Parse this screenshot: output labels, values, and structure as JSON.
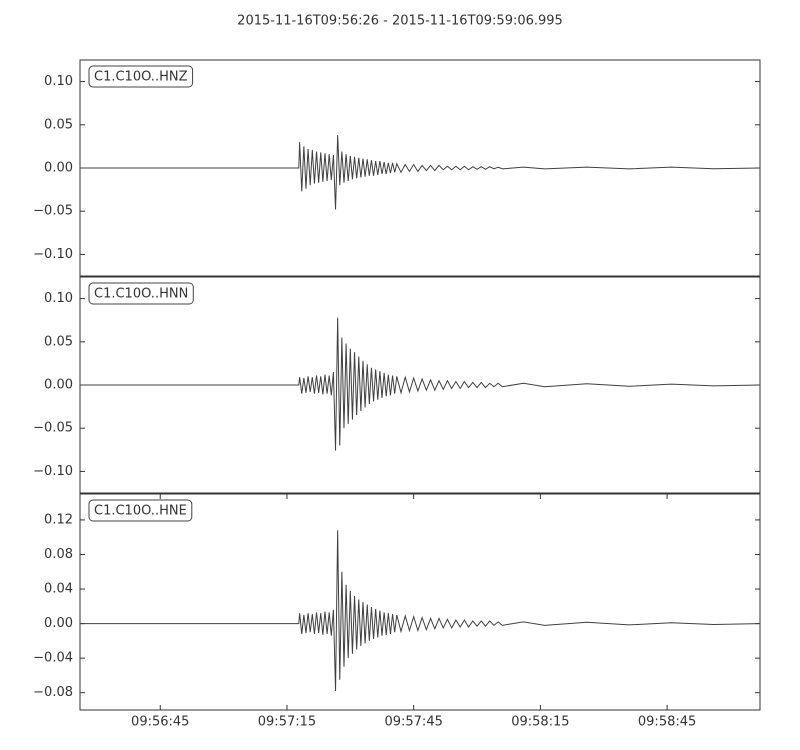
{
  "title": "2015-11-16T09:56:26  -  2015-11-16T09:59:06.995",
  "chart_data": [
    {
      "type": "line",
      "label": "C1.C10O..HNZ",
      "color": "#404040",
      "x": [
        0,
        20,
        40,
        51.8,
        52,
        52.5,
        53,
        53.5,
        54,
        54.5,
        55,
        55.5,
        56,
        56.5,
        57,
        57.5,
        58,
        58.5,
        59,
        59.5,
        60,
        60.5,
        61,
        61.5,
        62,
        62.5,
        63,
        63.5,
        64,
        64.5,
        65,
        65.5,
        66,
        66.5,
        67,
        67.5,
        68,
        68.5,
        69,
        69.5,
        70,
        70.5,
        71,
        71.5,
        72,
        72.5,
        73,
        73.5,
        74,
        74.5,
        75,
        76,
        77,
        78,
        79,
        80,
        81,
        82,
        83,
        84,
        85,
        86,
        87,
        88,
        89,
        90,
        91,
        92,
        93,
        94,
        95,
        96,
        97,
        98,
        99,
        100,
        105,
        110,
        120,
        130,
        140,
        150,
        160.995
      ],
      "values": [
        0,
        0,
        0,
        0,
        0.03,
        -0.027,
        0.025,
        -0.024,
        0.022,
        -0.02,
        0.021,
        -0.018,
        0.019,
        -0.017,
        0.018,
        -0.016,
        0.017,
        -0.015,
        0.016,
        -0.014,
        0.015,
        -0.048,
        0.038,
        -0.02,
        0.019,
        -0.017,
        0.016,
        -0.015,
        0.014,
        -0.013,
        0.013,
        -0.012,
        0.012,
        -0.011,
        0.011,
        -0.01,
        0.01,
        -0.009,
        0.009,
        -0.009,
        0.008,
        -0.008,
        0.008,
        -0.007,
        0.007,
        -0.007,
        0.006,
        -0.006,
        0.006,
        -0.005,
        0.005,
        -0.005,
        0.004,
        -0.004,
        0.004,
        -0.004,
        0.003,
        -0.003,
        0.003,
        -0.003,
        0.003,
        -0.002,
        0.002,
        -0.002,
        0.002,
        -0.002,
        0.002,
        -0.002,
        0.0015,
        -0.0015,
        0.0015,
        -0.0015,
        0.0015,
        -0.001,
        0.001,
        -0.001,
        0.001,
        -0.001,
        0.001,
        -0.001,
        0.001,
        -0.0008,
        0
      ],
      "xlim": [
        0,
        160.995
      ],
      "ylim": [
        -0.125,
        0.125
      ],
      "yticks": [
        {
          "value": -0.1,
          "label": "−0.10"
        },
        {
          "value": -0.05,
          "label": "−0.05"
        },
        {
          "value": 0,
          "label": "0.00"
        },
        {
          "value": 0.05,
          "label": "0.05"
        },
        {
          "value": 0.1,
          "label": "0.10"
        }
      ]
    },
    {
      "type": "line",
      "label": "C1.C10O..HNN",
      "color": "#404040",
      "x": [
        0,
        20,
        40,
        51.8,
        52,
        52.5,
        53,
        53.5,
        54,
        54.5,
        55,
        55.5,
        56,
        56.5,
        57,
        57.5,
        58,
        58.5,
        59,
        59.5,
        60,
        60.5,
        61,
        61.5,
        62,
        62.5,
        63,
        63.5,
        64,
        64.5,
        65,
        65.5,
        66,
        66.5,
        67,
        67.5,
        68,
        68.5,
        69,
        69.5,
        70,
        70.5,
        71,
        71.5,
        72,
        72.5,
        73,
        73.5,
        74,
        74.5,
        75,
        76,
        77,
        78,
        79,
        80,
        81,
        82,
        83,
        84,
        85,
        86,
        87,
        88,
        89,
        90,
        91,
        92,
        93,
        94,
        95,
        96,
        97,
        98,
        99,
        100,
        105,
        110,
        120,
        130,
        140,
        150,
        160.995
      ],
      "values": [
        0,
        0,
        0,
        0,
        0.009,
        -0.01,
        0.008,
        -0.009,
        0.01,
        -0.008,
        0.009,
        -0.01,
        0.011,
        -0.009,
        0.01,
        -0.011,
        0.012,
        -0.01,
        0.011,
        -0.012,
        0.015,
        -0.076,
        0.078,
        -0.07,
        0.055,
        -0.05,
        0.048,
        -0.045,
        0.042,
        -0.04,
        0.038,
        -0.035,
        0.033,
        -0.03,
        0.028,
        -0.026,
        0.024,
        -0.022,
        0.02,
        -0.019,
        0.018,
        -0.017,
        0.016,
        -0.015,
        0.014,
        -0.013,
        0.012,
        -0.012,
        0.011,
        -0.01,
        0.01,
        -0.009,
        0.009,
        -0.008,
        0.008,
        -0.007,
        0.007,
        -0.006,
        0.006,
        -0.006,
        0.005,
        -0.005,
        0.005,
        -0.004,
        0.004,
        -0.004,
        0.004,
        -0.003,
        0.003,
        -0.003,
        0.003,
        -0.003,
        0.002,
        -0.002,
        0.002,
        -0.002,
        0.002,
        -0.002,
        0.0015,
        -0.0015,
        0.001,
        -0.001,
        0
      ],
      "xlim": [
        0,
        160.995
      ],
      "ylim": [
        -0.125,
        0.125
      ],
      "yticks": [
        {
          "value": -0.1,
          "label": "−0.10"
        },
        {
          "value": -0.05,
          "label": "−0.05"
        },
        {
          "value": 0,
          "label": "0.00"
        },
        {
          "value": 0.05,
          "label": "0.05"
        },
        {
          "value": 0.1,
          "label": "0.10"
        }
      ]
    },
    {
      "type": "line",
      "label": "C1.C10O..HNE",
      "color": "#404040",
      "x": [
        0,
        20,
        40,
        51.8,
        52,
        52.5,
        53,
        53.5,
        54,
        54.5,
        55,
        55.5,
        56,
        56.5,
        57,
        57.5,
        58,
        58.5,
        59,
        59.5,
        60,
        60.5,
        61,
        61.5,
        62,
        62.5,
        63,
        63.5,
        64,
        64.5,
        65,
        65.5,
        66,
        66.5,
        67,
        67.5,
        68,
        68.5,
        69,
        69.5,
        70,
        70.5,
        71,
        71.5,
        72,
        72.5,
        73,
        73.5,
        74,
        74.5,
        75,
        76,
        77,
        78,
        79,
        80,
        81,
        82,
        83,
        84,
        85,
        86,
        87,
        88,
        89,
        90,
        91,
        92,
        93,
        94,
        95,
        96,
        97,
        98,
        99,
        100,
        105,
        110,
        120,
        130,
        140,
        150,
        160.995
      ],
      "values": [
        0,
        0,
        0,
        0,
        0.012,
        -0.012,
        0.01,
        -0.011,
        0.012,
        -0.01,
        0.011,
        -0.012,
        0.013,
        -0.011,
        0.012,
        -0.013,
        0.014,
        -0.012,
        0.013,
        -0.014,
        0.016,
        -0.078,
        0.108,
        -0.065,
        0.06,
        -0.05,
        0.045,
        -0.04,
        0.038,
        -0.035,
        0.032,
        -0.03,
        0.028,
        -0.026,
        0.025,
        -0.023,
        0.022,
        -0.02,
        0.019,
        -0.018,
        0.017,
        -0.016,
        0.015,
        -0.014,
        0.013,
        -0.013,
        0.012,
        -0.012,
        0.011,
        -0.01,
        0.01,
        -0.009,
        0.009,
        -0.008,
        0.008,
        -0.008,
        0.007,
        -0.007,
        0.006,
        -0.006,
        0.006,
        -0.005,
        0.005,
        -0.005,
        0.004,
        -0.004,
        0.004,
        -0.004,
        0.003,
        -0.003,
        0.003,
        -0.003,
        0.003,
        -0.002,
        0.002,
        -0.002,
        0.002,
        -0.002,
        0.0015,
        -0.0015,
        0.001,
        -0.001,
        0
      ],
      "xlim": [
        0,
        160.995
      ],
      "ylim": [
        -0.1,
        0.15
      ],
      "xticks": [
        {
          "value": 19,
          "label": "09:56:45"
        },
        {
          "value": 49,
          "label": "09:57:15"
        },
        {
          "value": 79,
          "label": "09:57:45"
        },
        {
          "value": 109,
          "label": "09:58:15"
        },
        {
          "value": 139,
          "label": "09:58:45"
        }
      ],
      "yticks": [
        {
          "value": -0.08,
          "label": "−0.08"
        },
        {
          "value": -0.04,
          "label": "−0.04"
        },
        {
          "value": 0,
          "label": "0.00"
        },
        {
          "value": 0.04,
          "label": "0.04"
        },
        {
          "value": 0.08,
          "label": "0.08"
        },
        {
          "value": 0.12,
          "label": "0.12"
        }
      ]
    }
  ]
}
